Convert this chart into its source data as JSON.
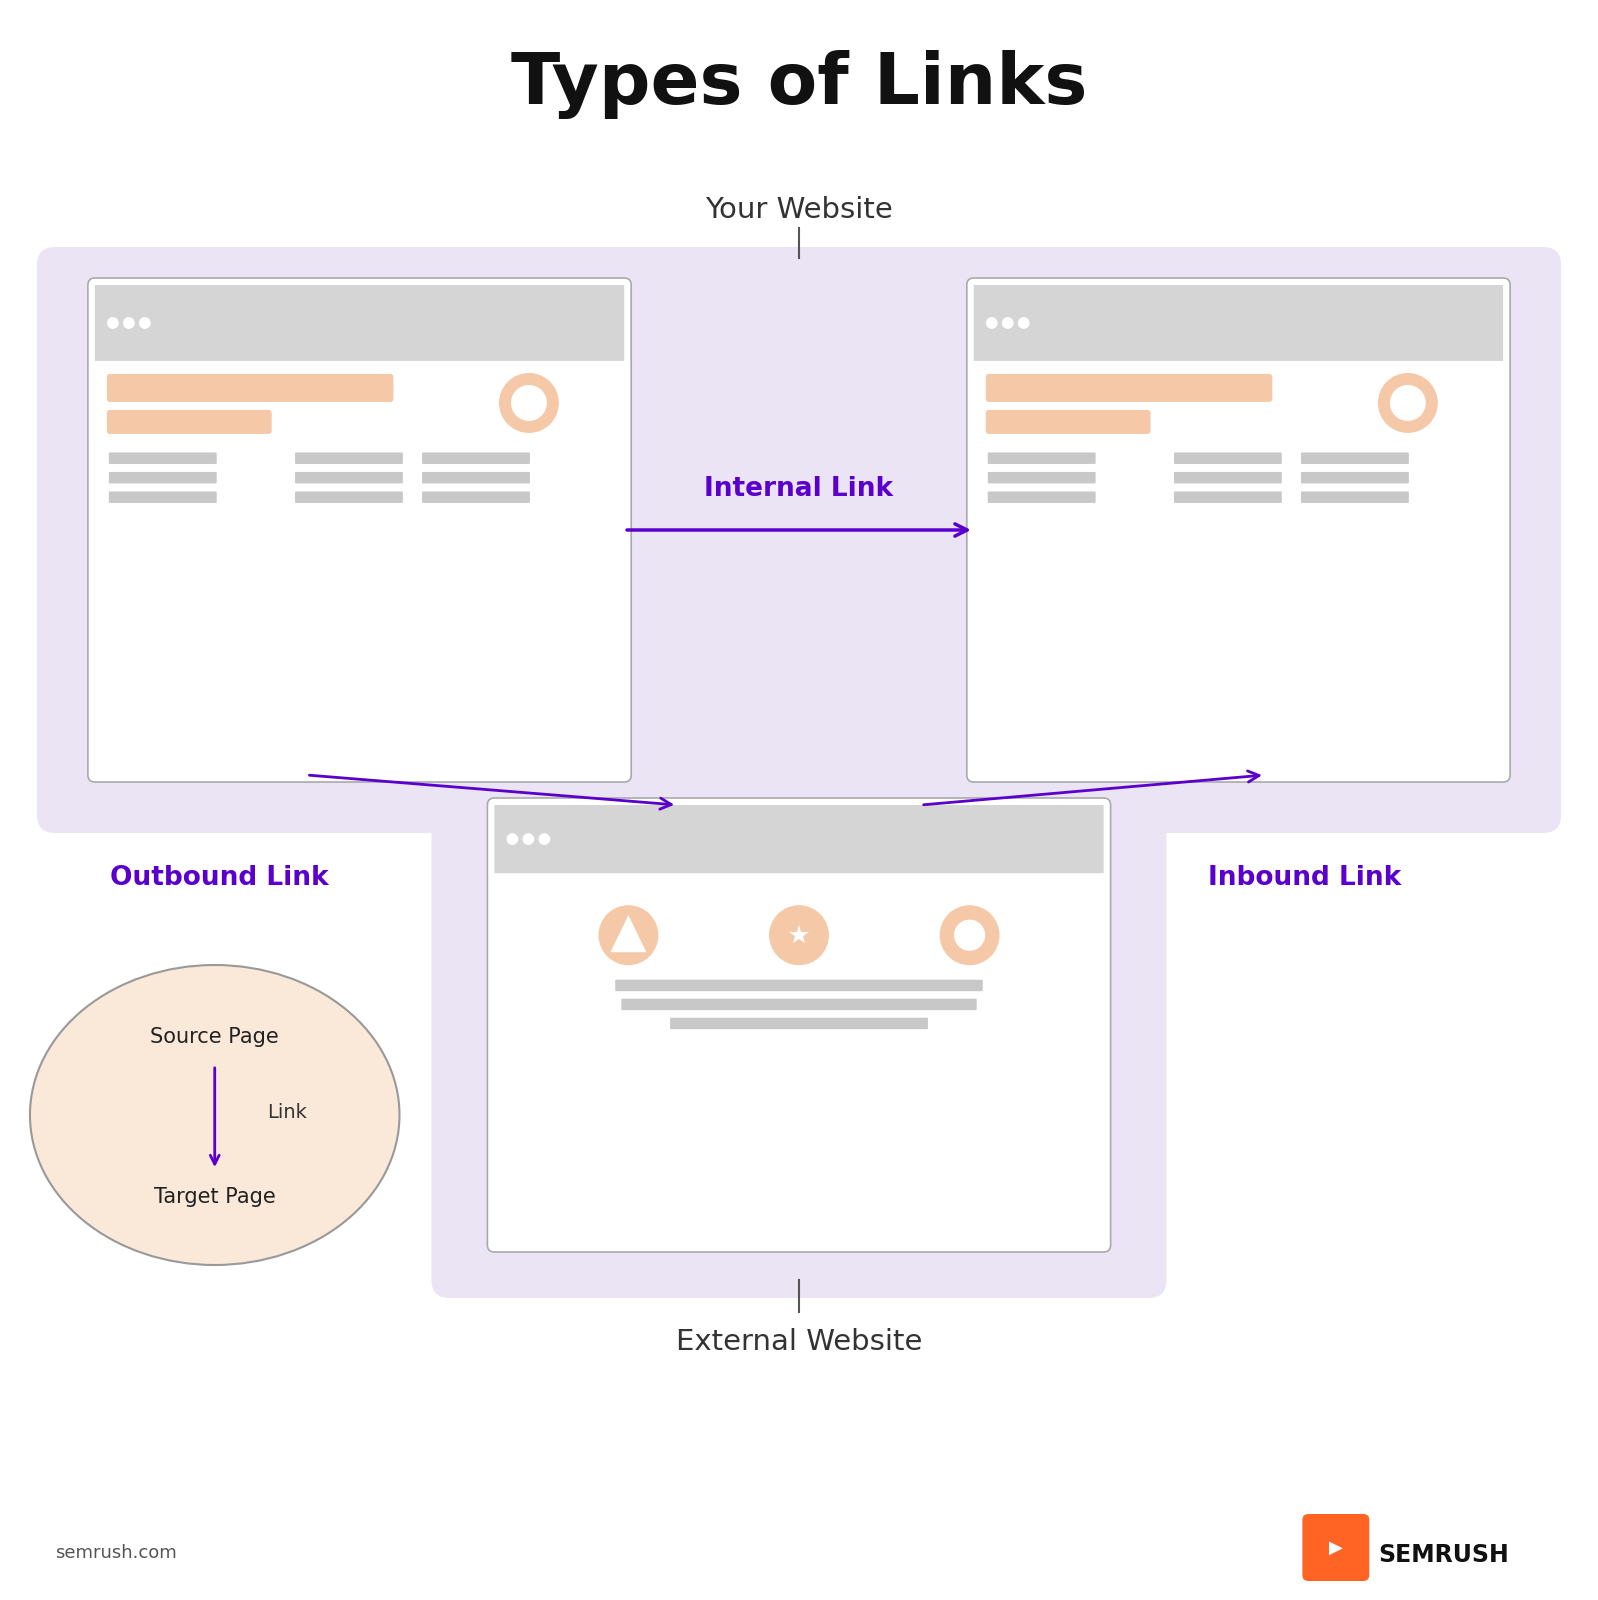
{
  "title": "Types of Links",
  "title_fontsize": 52,
  "bg_color": "#ffffff",
  "purple_color": "#5B00CC",
  "light_purple_bg": "#EAE4F5",
  "browser_border": "#bbbbbb",
  "browser_header": "#d5d5d5",
  "peach_color": "#F5C9A8",
  "gray_bar": "#c8c8c8",
  "circle_legend_bg": "#FAE8D8",
  "your_website_label": "Your Website",
  "external_website_label": "External Website",
  "internal_link_label": "Internal Link",
  "outbound_link_label": "Outbound Link",
  "inbound_link_label": "Inbound Link",
  "source_page_label": "Source Page",
  "link_label": "Link",
  "target_page_label": "Target Page",
  "semrush_label": "SEMRUSH",
  "semrush_com_label": "semrush.com",
  "orange_color": "#FF6424"
}
